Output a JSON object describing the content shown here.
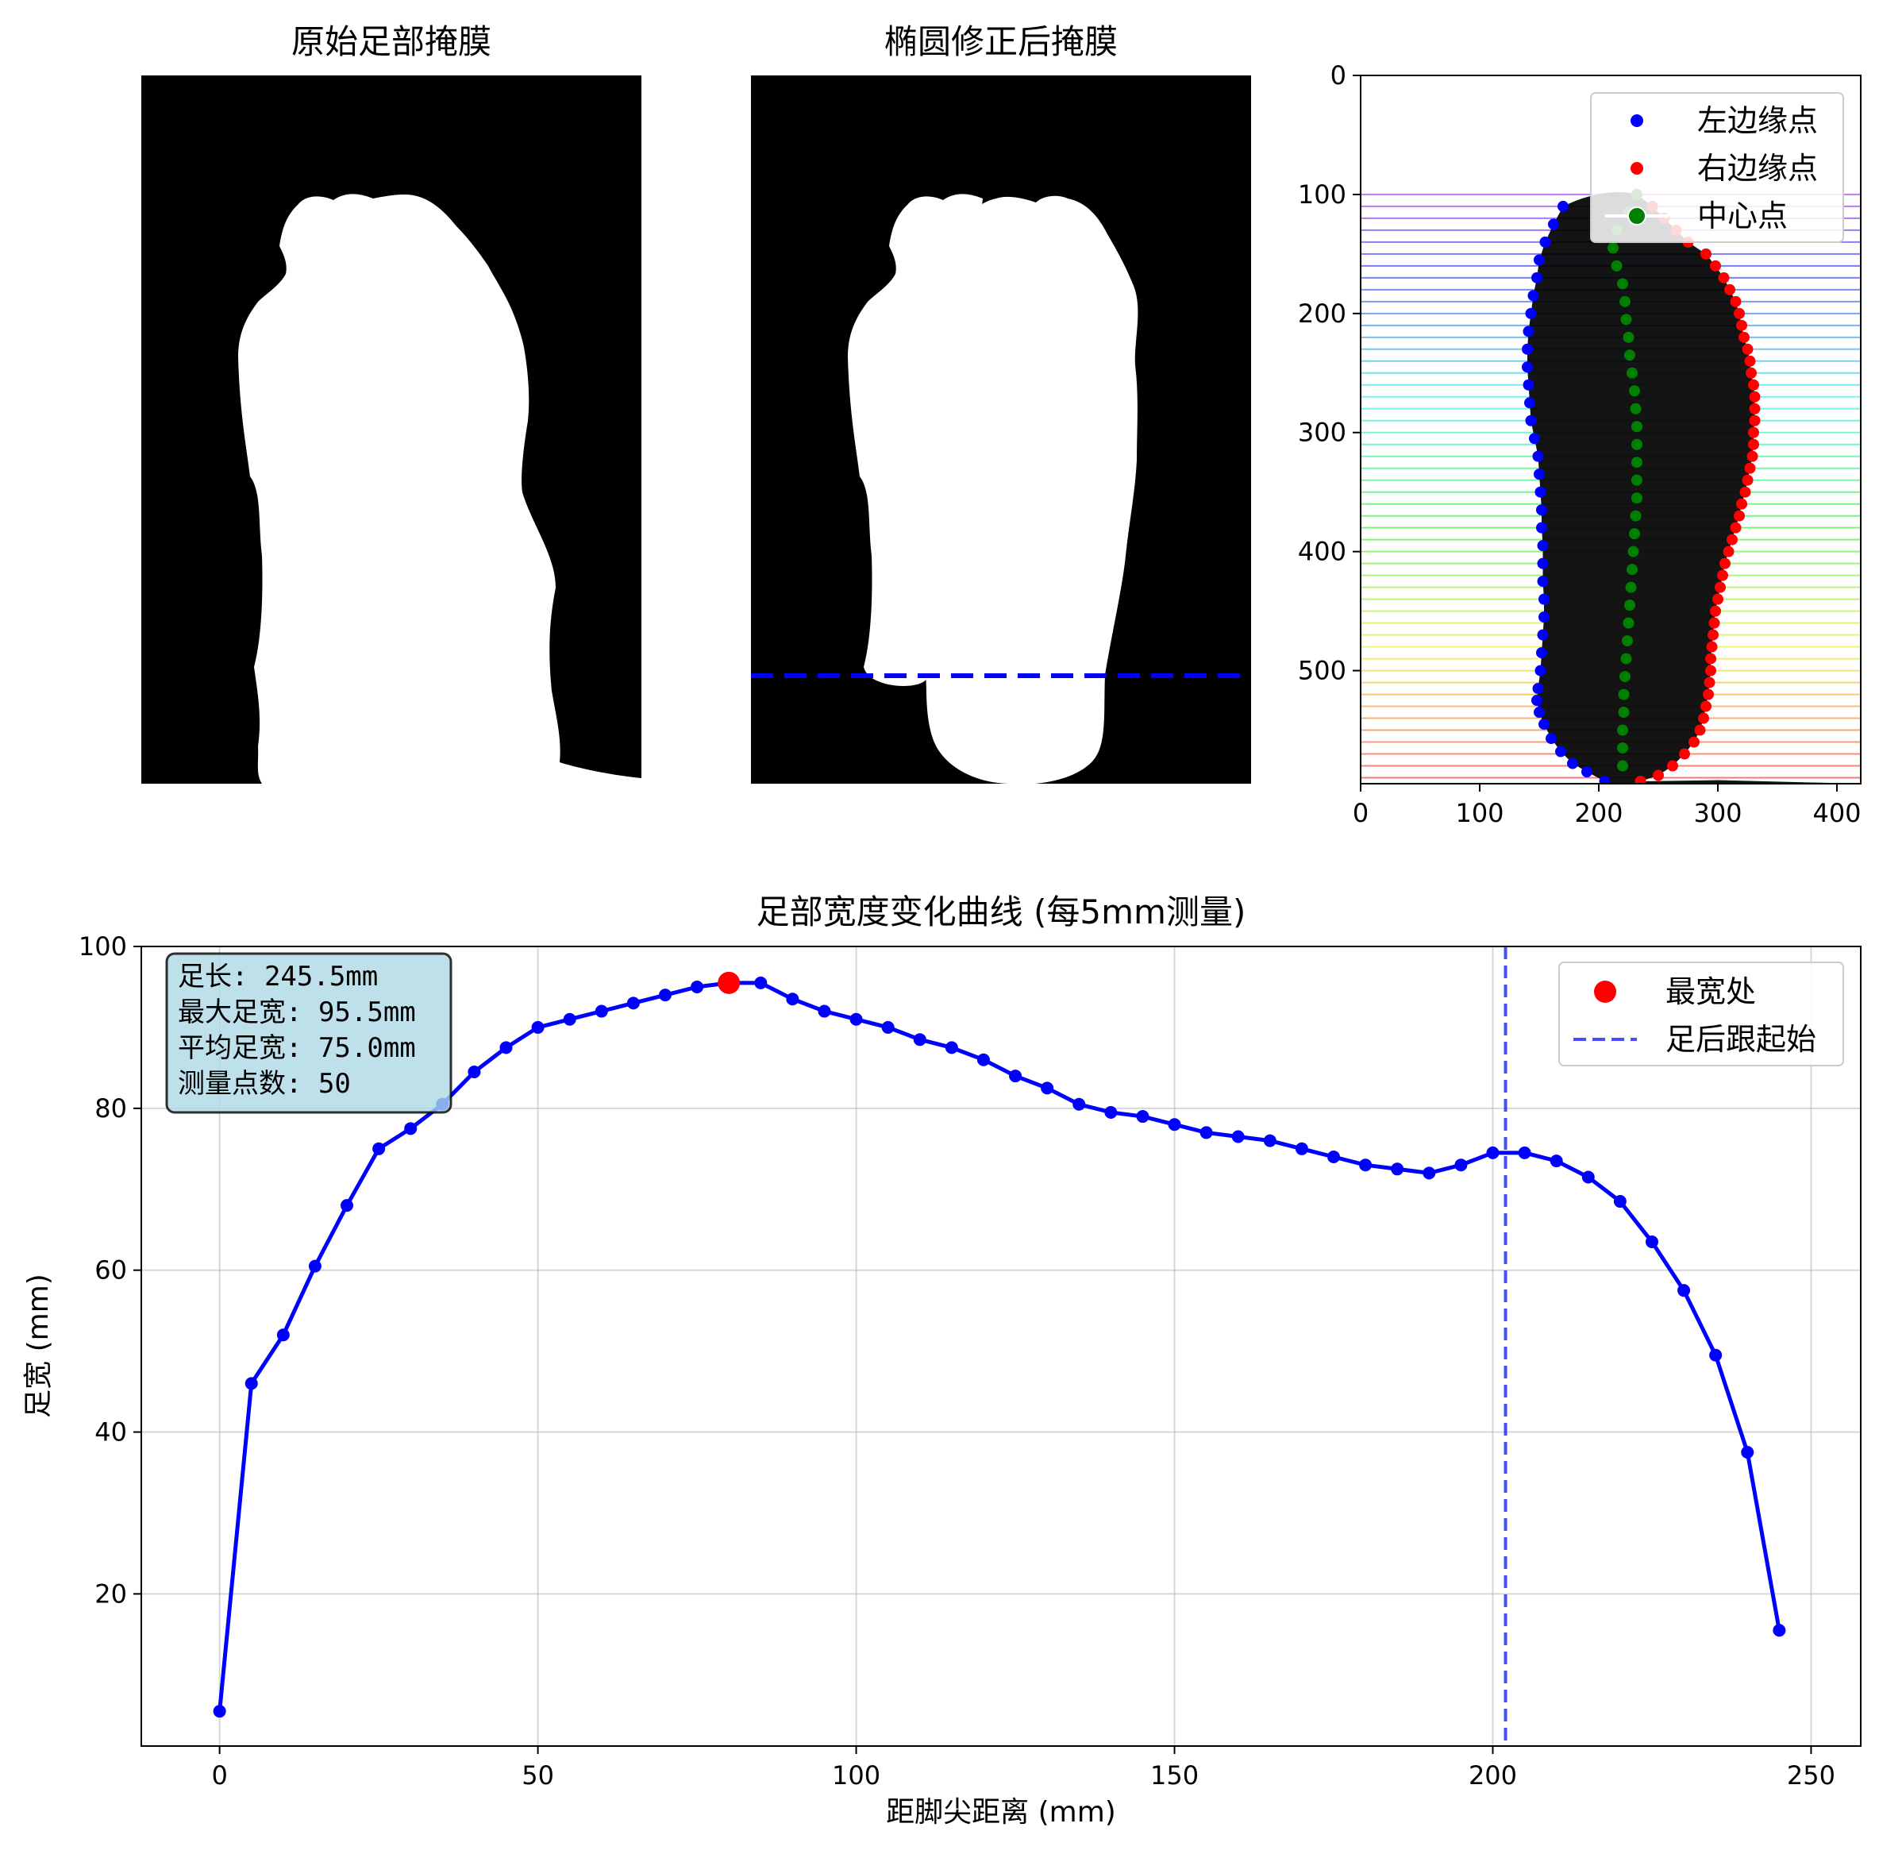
{
  "chart_data": [
    {
      "type": "image",
      "title": "原始足部掩膜",
      "variant": "original"
    },
    {
      "type": "image",
      "title": "椭圆修正后掩膜",
      "variant": "ellipse",
      "dashed_line_y": 505,
      "dashed_line_color": "#0000ff"
    },
    {
      "type": "scatter",
      "title": "",
      "xlim": [
        0,
        420
      ],
      "ylim": [
        595,
        0
      ],
      "x_ticks": [
        0,
        100,
        200,
        300,
        400
      ],
      "y_ticks": [
        0,
        100,
        200,
        300,
        400,
        500
      ],
      "legend": "top-right",
      "series": [
        {
          "name": "左边缘点",
          "color": "#0000ff",
          "points": [
            [
              170,
              110
            ],
            [
              162,
              125
            ],
            [
              155,
              140
            ],
            [
              150,
              155
            ],
            [
              148,
              170
            ],
            [
              145,
              185
            ],
            [
              143,
              200
            ],
            [
              141,
              215
            ],
            [
              140,
              230
            ],
            [
              140,
              245
            ],
            [
              141,
              260
            ],
            [
              142,
              275
            ],
            [
              143,
              290
            ],
            [
              146,
              305
            ],
            [
              149,
              320
            ],
            [
              150,
              335
            ],
            [
              151,
              350
            ],
            [
              152,
              365
            ],
            [
              152,
              380
            ],
            [
              153,
              395
            ],
            [
              153,
              410
            ],
            [
              153,
              425
            ],
            [
              154,
              440
            ],
            [
              154,
              455
            ],
            [
              153,
              470
            ],
            [
              152,
              485
            ],
            [
              151,
              500
            ],
            [
              149,
              515
            ],
            [
              148,
              525
            ],
            [
              150,
              535
            ],
            [
              154,
              545
            ],
            [
              160,
              557
            ],
            [
              168,
              568
            ],
            [
              178,
              578
            ],
            [
              190,
              585
            ],
            [
              205,
              593
            ]
          ]
        },
        {
          "name": "右边缘点",
          "color": "#ff0000",
          "points": [
            [
              232,
              100
            ],
            [
              245,
              110
            ],
            [
              255,
              120
            ],
            [
              265,
              130
            ],
            [
              275,
              140
            ],
            [
              290,
              150
            ],
            [
              298,
              160
            ],
            [
              305,
              170
            ],
            [
              310,
              180
            ],
            [
              315,
              190
            ],
            [
              318,
              200
            ],
            [
              320,
              210
            ],
            [
              322,
              220
            ],
            [
              325,
              230
            ],
            [
              327,
              240
            ],
            [
              328,
              250
            ],
            [
              330,
              260
            ],
            [
              331,
              270
            ],
            [
              331,
              280
            ],
            [
              331,
              290
            ],
            [
              330,
              300
            ],
            [
              330,
              310
            ],
            [
              329,
              320
            ],
            [
              327,
              330
            ],
            [
              325,
              340
            ],
            [
              323,
              350
            ],
            [
              320,
              360
            ],
            [
              318,
              370
            ],
            [
              315,
              380
            ],
            [
              312,
              390
            ],
            [
              309,
              400
            ],
            [
              306,
              410
            ],
            [
              304,
              420
            ],
            [
              302,
              430
            ],
            [
              300,
              440
            ],
            [
              298,
              450
            ],
            [
              297,
              460
            ],
            [
              296,
              470
            ],
            [
              295,
              480
            ],
            [
              294,
              490
            ],
            [
              294,
              500
            ],
            [
              293,
              510
            ],
            [
              292,
              520
            ],
            [
              290,
              530
            ],
            [
              288,
              540
            ],
            [
              285,
              550
            ],
            [
              280,
              560
            ],
            [
              272,
              570
            ],
            [
              262,
              580
            ],
            [
              250,
              588
            ],
            [
              235,
              593
            ]
          ]
        },
        {
          "name": "中心点",
          "color": "#008000",
          "points": [
            [
              232,
              100
            ],
            [
              225,
              115
            ],
            [
              215,
              130
            ],
            [
              212,
              145
            ],
            [
              215,
              160
            ],
            [
              220,
              175
            ],
            [
              222,
              190
            ],
            [
              223,
              205
            ],
            [
              225,
              220
            ],
            [
              226,
              235
            ],
            [
              228,
              250
            ],
            [
              230,
              265
            ],
            [
              231,
              280
            ],
            [
              232,
              295
            ],
            [
              232,
              310
            ],
            [
              232,
              325
            ],
            [
              232,
              340
            ],
            [
              232,
              355
            ],
            [
              231,
              370
            ],
            [
              230,
              385
            ],
            [
              229,
              400
            ],
            [
              228,
              415
            ],
            [
              227,
              430
            ],
            [
              226,
              445
            ],
            [
              225,
              460
            ],
            [
              224,
              475
            ],
            [
              223,
              490
            ],
            [
              222,
              505
            ],
            [
              221,
              520
            ],
            [
              221,
              535
            ],
            [
              220,
              550
            ],
            [
              220,
              565
            ],
            [
              220,
              580
            ]
          ]
        }
      ]
    },
    {
      "type": "line",
      "title": "足部宽度变化曲线 (每5mm测量)",
      "xlabel": "距脚尖距离 (mm)",
      "ylabel": "足宽 (mm)",
      "xlim": [
        -12.3,
        257.8
      ],
      "ylim": [
        1.2,
        100
      ],
      "x_ticks": [
        0,
        50,
        100,
        150,
        200,
        250
      ],
      "y_ticks": [
        20,
        40,
        60,
        80,
        100
      ],
      "grid": true,
      "legend": "top-right",
      "x": [
        0,
        5,
        10,
        15,
        20,
        25,
        30,
        35,
        40,
        45,
        50,
        55,
        60,
        65,
        70,
        75,
        80,
        85,
        90,
        95,
        100,
        105,
        110,
        115,
        120,
        125,
        130,
        135,
        140,
        145,
        150,
        155,
        160,
        165,
        170,
        175,
        180,
        185,
        190,
        195,
        200,
        205,
        210,
        215,
        220,
        225,
        230,
        235,
        240,
        245
      ],
      "series": [
        {
          "name": "",
          "color": "#0000ff",
          "values": [
            5.5,
            46,
            52,
            60.5,
            68,
            75,
            77.5,
            80.5,
            84.5,
            87.5,
            90,
            91,
            92,
            93,
            94,
            95,
            95.5,
            95.5,
            93.5,
            92,
            91,
            90,
            88.5,
            87.5,
            86,
            84,
            82.5,
            80.5,
            79.5,
            79,
            78,
            77,
            76.5,
            76,
            75,
            74,
            73,
            72.5,
            72,
            73,
            74.5,
            74.5,
            73.5,
            71.5,
            68.5,
            63.5,
            57.5,
            49.5,
            37.5,
            15.5
          ]
        }
      ],
      "max_point": {
        "name": "最宽处",
        "x": 80,
        "y": 95.5,
        "color": "#ff0000"
      },
      "heel_line": {
        "name": "足后跟起始",
        "x": 202,
        "color": "#0000ff"
      },
      "info_box": {
        "lines": [
          "足长: 245.5mm",
          "最大足宽: 95.5mm",
          "平均足宽: 75.0mm",
          "测量点数: 50"
        ],
        "background": "#add8e6"
      }
    }
  ]
}
